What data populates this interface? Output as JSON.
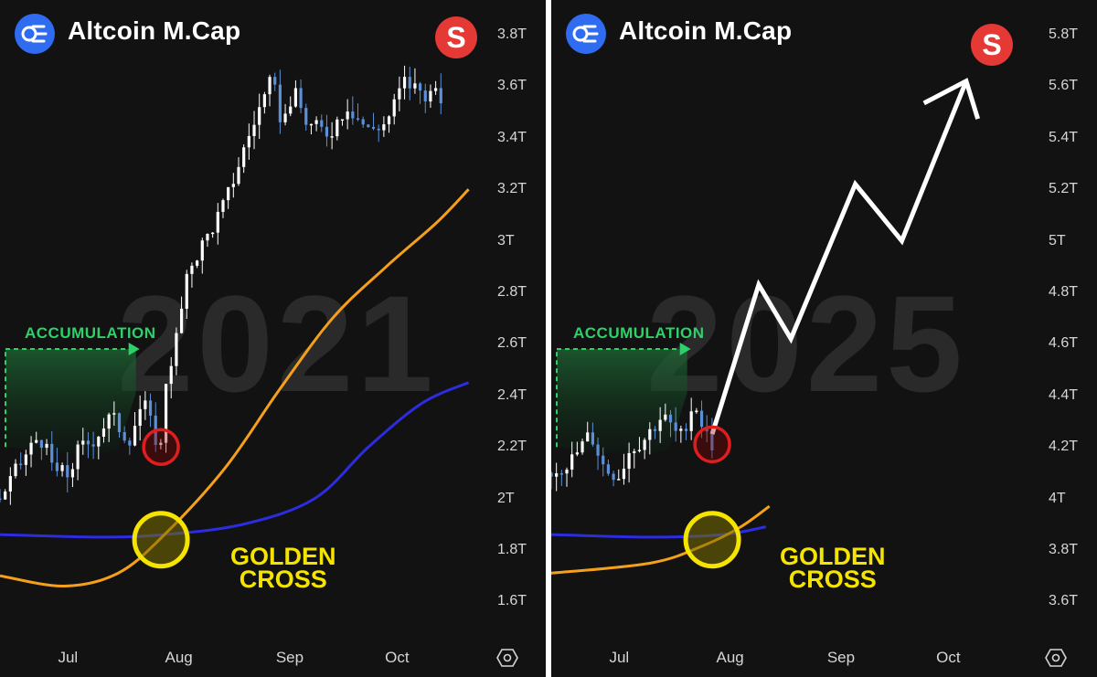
{
  "colors": {
    "background": "#121212",
    "candle_up": "#ffffff",
    "candle_down": "#5b8fd8",
    "ma_fast": "#f5a01a",
    "ma_slow": "#2c2ce0",
    "accumulation": "#2fcf6a",
    "golden_cross": "#f5e400",
    "marker_red": "#e01e1e",
    "brand_blue": "#2f6cf2",
    "badge_red": "#e53935"
  },
  "icons": [
    "altcoin-logo-icon",
    "s-badge-icon",
    "settings-hexagon-icon"
  ],
  "chart_data": [
    {
      "type": "candlestick",
      "title": "Altcoin M.Cap",
      "watermark": "2021",
      "badge": "S",
      "accumulation_label": "ACCUMULATION",
      "golden_cross_label": [
        "GOLDEN",
        "CROSS"
      ],
      "y_tick_labels": [
        "3.8T",
        "3.6T",
        "3.4T",
        "3.2T",
        "3T",
        "2.8T",
        "2.6T",
        "2.4T",
        "2.2T",
        "2T",
        "1.8T",
        "1.6T"
      ],
      "y_tick_values": [
        3.8,
        3.6,
        3.4,
        3.2,
        3.0,
        2.8,
        2.6,
        2.4,
        2.2,
        2.0,
        1.8,
        1.6
      ],
      "ylim": [
        1.5,
        3.9
      ],
      "x_tick_labels": [
        "Jul",
        "Aug",
        "Sep",
        "Oct"
      ],
      "x_tick_days": [
        1,
        32,
        63,
        93
      ],
      "x_range_days": [
        -18,
        120
      ],
      "close_path": [
        {
          "day": -18,
          "value": 2.0
        },
        {
          "day": -12,
          "value": 2.14
        },
        {
          "day": -7,
          "value": 2.25
        },
        {
          "day": -3,
          "value": 2.11
        },
        {
          "day": 1,
          "value": 2.09
        },
        {
          "day": 4,
          "value": 2.19
        },
        {
          "day": 8,
          "value": 2.23
        },
        {
          "day": 13,
          "value": 2.32
        },
        {
          "day": 18,
          "value": 2.23
        },
        {
          "day": 22,
          "value": 2.38
        },
        {
          "day": 25,
          "value": 2.25
        },
        {
          "day": 27,
          "value": 2.2
        },
        {
          "day": 28,
          "value": 2.44
        },
        {
          "day": 31,
          "value": 2.6
        },
        {
          "day": 35,
          "value": 2.9
        },
        {
          "day": 40,
          "value": 3.02
        },
        {
          "day": 45,
          "value": 3.15
        },
        {
          "day": 50,
          "value": 3.35
        },
        {
          "day": 54,
          "value": 3.5
        },
        {
          "day": 58,
          "value": 3.62
        },
        {
          "day": 61,
          "value": 3.45
        },
        {
          "day": 64,
          "value": 3.58
        },
        {
          "day": 68,
          "value": 3.45
        },
        {
          "day": 74,
          "value": 3.42
        },
        {
          "day": 79,
          "value": 3.53
        },
        {
          "day": 85,
          "value": 3.43
        },
        {
          "day": 90,
          "value": 3.46
        },
        {
          "day": 95,
          "value": 3.62
        },
        {
          "day": 100,
          "value": 3.58
        },
        {
          "day": 106,
          "value": 3.55
        }
      ],
      "ma_fast": [
        {
          "day": -18,
          "value": 1.7
        },
        {
          "day": 0,
          "value": 1.66
        },
        {
          "day": 15,
          "value": 1.71
        },
        {
          "day": 28,
          "value": 1.86
        },
        {
          "day": 45,
          "value": 2.12
        },
        {
          "day": 60,
          "value": 2.42
        },
        {
          "day": 75,
          "value": 2.7
        },
        {
          "day": 90,
          "value": 2.9
        },
        {
          "day": 104,
          "value": 3.07
        },
        {
          "day": 113,
          "value": 3.2
        }
      ],
      "ma_slow": [
        {
          "day": -18,
          "value": 1.86
        },
        {
          "day": 10,
          "value": 1.85
        },
        {
          "day": 28,
          "value": 1.86
        },
        {
          "day": 50,
          "value": 1.9
        },
        {
          "day": 70,
          "value": 2.0
        },
        {
          "day": 85,
          "value": 2.2
        },
        {
          "day": 100,
          "value": 2.37
        },
        {
          "day": 113,
          "value": 2.45
        }
      ],
      "accumulation_range_days": [
        -18,
        20
      ],
      "accumulation_range_values": [
        2.2,
        2.58
      ],
      "golden_cross_point": {
        "day": 27,
        "value": 1.84
      },
      "breakout_marker": {
        "day": 27,
        "value": 2.2
      }
    },
    {
      "type": "candlestick",
      "title": "Altcoin M.Cap",
      "watermark": "2025",
      "badge": "S",
      "accumulation_label": "ACCUMULATION",
      "golden_cross_label": [
        "GOLDEN",
        "CROSS"
      ],
      "y_tick_labels": [
        "5.8T",
        "5.6T",
        "5.4T",
        "5.2T",
        "5T",
        "4.8T",
        "4.6T",
        "4.4T",
        "4.2T",
        "4T",
        "3.8T",
        "3.6T"
      ],
      "y_tick_values": [
        5.8,
        5.6,
        5.4,
        5.2,
        5.0,
        4.8,
        4.6,
        4.4,
        4.2,
        4.0,
        3.8,
        3.6
      ],
      "ylim": [
        3.5,
        5.9
      ],
      "x_tick_labels": [
        "Jul",
        "Aug",
        "Sep",
        "Oct"
      ],
      "x_tick_days": [
        1,
        32,
        63,
        93
      ],
      "x_range_days": [
        -18,
        120
      ],
      "close_path": [
        {
          "day": -18,
          "value": 4.1
        },
        {
          "day": -12,
          "value": 4.15
        },
        {
          "day": -7,
          "value": 4.25
        },
        {
          "day": -3,
          "value": 4.11
        },
        {
          "day": 1,
          "value": 4.09
        },
        {
          "day": 4,
          "value": 4.19
        },
        {
          "day": 8,
          "value": 4.23
        },
        {
          "day": 13,
          "value": 4.32
        },
        {
          "day": 18,
          "value": 4.23
        },
        {
          "day": 22,
          "value": 4.38
        },
        {
          "day": 25,
          "value": 4.25
        },
        {
          "day": 27,
          "value": 4.21
        }
      ],
      "projection": [
        {
          "day": 27,
          "value": 4.25
        },
        {
          "day": 40,
          "value": 4.83
        },
        {
          "day": 49,
          "value": 4.62
        },
        {
          "day": 67,
          "value": 5.22
        },
        {
          "day": 80,
          "value": 5.0
        },
        {
          "day": 98,
          "value": 5.62
        }
      ],
      "ma_fast": [
        {
          "day": -18,
          "value": 3.71
        },
        {
          "day": 10,
          "value": 3.75
        },
        {
          "day": 25,
          "value": 3.82
        },
        {
          "day": 35,
          "value": 3.89
        },
        {
          "day": 43,
          "value": 3.97
        }
      ],
      "ma_slow": [
        {
          "day": -18,
          "value": 3.86
        },
        {
          "day": 10,
          "value": 3.85
        },
        {
          "day": 30,
          "value": 3.86
        },
        {
          "day": 42,
          "value": 3.89
        }
      ],
      "accumulation_range_days": [
        -18,
        20
      ],
      "accumulation_range_values": [
        4.2,
        4.58
      ],
      "golden_cross_point": {
        "day": 27,
        "value": 3.84
      },
      "breakout_marker": {
        "day": 27,
        "value": 4.21
      }
    }
  ]
}
